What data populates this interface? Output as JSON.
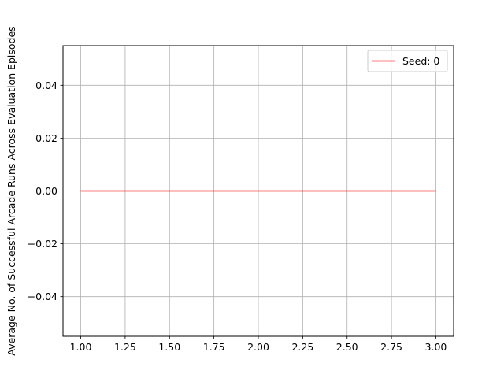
{
  "chart_data": {
    "type": "line",
    "title": "",
    "xlabel": "",
    "ylabel": "Average No. of Successful Arcade Runs Across Evaluation Episodes",
    "xlim": [
      0.9,
      3.1
    ],
    "ylim": [
      -0.055,
      0.055
    ],
    "xticks": [
      1.0,
      1.25,
      1.5,
      1.75,
      2.0,
      2.25,
      2.5,
      2.75,
      3.0
    ],
    "xtick_labels": [
      "1.00",
      "1.25",
      "1.50",
      "1.75",
      "2.00",
      "2.25",
      "2.50",
      "2.75",
      "3.00"
    ],
    "yticks": [
      -0.04,
      -0.02,
      0.0,
      0.02,
      0.04
    ],
    "ytick_labels": [
      "−0.04",
      "−0.02",
      "0.00",
      "0.02",
      "0.04"
    ],
    "grid": true,
    "legend_position": "upper right",
    "series": [
      {
        "name": "Seed: 0",
        "color": "#ff0000",
        "x": [
          1,
          2,
          3
        ],
        "y": [
          0,
          0,
          0
        ]
      }
    ]
  }
}
